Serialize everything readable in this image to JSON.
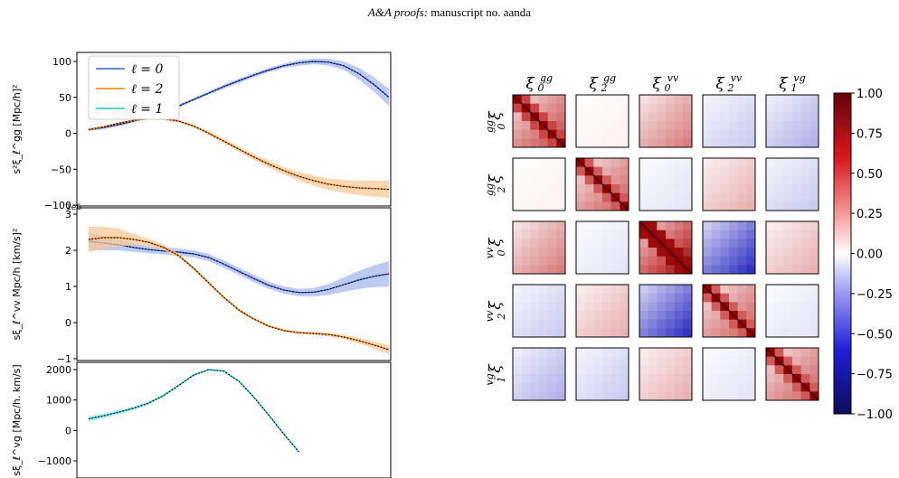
{
  "header": {
    "journal": "A&A proofs:",
    "manuscript": "manuscript no. aanda"
  },
  "colors": {
    "l0": "#3a5fcd",
    "l2": "#f07f0f",
    "l1": "#20c4c8",
    "band_l0": "#a9b8ee",
    "band_l2": "#f7c99a",
    "band_l1": "#9ce6e8",
    "model": "#000000"
  },
  "chart_data": [
    {
      "type": "line",
      "panel": "gg",
      "ylabel": "s²ξ_ℓ^gg  [Mpc/h]²",
      "ylim": [
        -100,
        110
      ],
      "yticks": [
        100,
        50,
        0,
        -50,
        -100
      ],
      "ytick_labels": [
        "100",
        "50",
        "0",
        "−50",
        "−100"
      ],
      "legend": [
        "ℓ = 0",
        "ℓ = 2",
        "ℓ = 1"
      ],
      "legend_position": "top-left",
      "x": [
        0.0,
        0.05,
        0.1,
        0.15,
        0.2,
        0.25,
        0.3,
        0.35,
        0.4,
        0.45,
        0.5,
        0.55,
        0.6,
        0.65,
        0.7,
        0.75,
        0.8,
        0.85,
        0.9,
        0.95,
        1.0
      ],
      "series": [
        {
          "name": "ℓ = 0",
          "color_key": "l0",
          "values": [
            5,
            8,
            12,
            17,
            23,
            30,
            38,
            47,
            56,
            65,
            73,
            81,
            88,
            94,
            98,
            100,
            99,
            94,
            83,
            68,
            50
          ],
          "err": [
            2,
            2,
            2,
            2,
            2,
            2,
            2,
            2,
            2,
            3,
            3,
            3,
            3,
            3,
            4,
            4,
            5,
            6,
            8,
            10,
            12
          ]
        },
        {
          "name": "ℓ = 2",
          "color_key": "l2",
          "values": [
            5,
            9,
            14,
            18,
            20,
            20,
            17,
            10,
            0,
            -11,
            -22,
            -33,
            -43,
            -52,
            -60,
            -66,
            -71,
            -74,
            -76,
            -77,
            -78
          ],
          "err": [
            1,
            1,
            1,
            1,
            1,
            2,
            2,
            2,
            3,
            3,
            4,
            4,
            5,
            5,
            6,
            7,
            8,
            9,
            10,
            11,
            12
          ]
        }
      ]
    },
    {
      "type": "line",
      "panel": "vv",
      "ylabel": "sξ_ℓ^vv  Mpc/h [km/s]²",
      "exponent_label": "1e6",
      "ylim": [
        -1,
        3
      ],
      "yticks": [
        3,
        2,
        1,
        0,
        -1
      ],
      "ytick_labels": [
        "3",
        "2",
        "1",
        "0",
        "−1"
      ],
      "x": [
        0.0,
        0.05,
        0.1,
        0.15,
        0.2,
        0.25,
        0.3,
        0.35,
        0.4,
        0.45,
        0.5,
        0.55,
        0.6,
        0.65,
        0.7,
        0.75,
        0.8,
        0.85,
        0.9,
        0.95,
        1.0
      ],
      "series": [
        {
          "name": "ℓ = 0",
          "color_key": "l0",
          "values": [
            2.25,
            2.2,
            2.15,
            2.08,
            2.02,
            1.98,
            1.95,
            1.9,
            1.8,
            1.62,
            1.42,
            1.22,
            1.03,
            0.9,
            0.83,
            0.84,
            0.92,
            1.05,
            1.18,
            1.28,
            1.35
          ],
          "err": [
            0.25,
            0.2,
            0.15,
            0.12,
            0.1,
            0.1,
            0.1,
            0.1,
            0.1,
            0.1,
            0.1,
            0.1,
            0.1,
            0.1,
            0.1,
            0.12,
            0.15,
            0.2,
            0.25,
            0.3,
            0.35
          ]
        },
        {
          "name": "ℓ = 2",
          "color_key": "l2",
          "values": [
            2.3,
            2.35,
            2.35,
            2.3,
            2.22,
            2.08,
            1.85,
            1.5,
            1.1,
            0.7,
            0.35,
            0.1,
            -0.1,
            -0.22,
            -0.28,
            -0.3,
            -0.33,
            -0.4,
            -0.5,
            -0.62,
            -0.75
          ],
          "err": [
            0.35,
            0.3,
            0.25,
            0.15,
            0.1,
            0.08,
            0.06,
            0.05,
            0.05,
            0.04,
            0.04,
            0.04,
            0.04,
            0.04,
            0.04,
            0.04,
            0.05,
            0.06,
            0.08,
            0.1,
            0.12
          ]
        }
      ]
    },
    {
      "type": "line",
      "panel": "vg",
      "ylabel": "sξ_ℓ^vg  [Mpc/h. km/s]",
      "ylim": [
        -1400,
        2100
      ],
      "yticks": [
        2000,
        1000,
        0,
        -1000
      ],
      "ytick_labels": [
        "2000",
        "1000",
        "0",
        "−1000"
      ],
      "x": [
        0.0,
        0.05,
        0.1,
        0.15,
        0.2,
        0.25,
        0.3,
        0.35,
        0.4,
        0.45,
        0.5,
        0.55,
        0.6,
        0.65,
        0.7
      ],
      "series": [
        {
          "name": "ℓ = 1",
          "color_key": "l1",
          "values": [
            380,
            480,
            600,
            730,
            900,
            1150,
            1480,
            1820,
            2000,
            1950,
            1620,
            1100,
            500,
            -120,
            -700
          ],
          "err": [
            90,
            80,
            70,
            60,
            50,
            40,
            35,
            30,
            30,
            30,
            30,
            30,
            30,
            30,
            30
          ]
        }
      ]
    },
    {
      "type": "heatmap",
      "panel": "correlation-matrix",
      "row_labels": [
        {
          "main": "ξ",
          "sup": "gg",
          "sub": "0"
        },
        {
          "main": "ξ",
          "sup": "gg",
          "sub": "2"
        },
        {
          "main": "ξ",
          "sup": "vv",
          "sub": "0"
        },
        {
          "main": "ξ",
          "sup": "vv",
          "sub": "2"
        },
        {
          "main": "ξ",
          "sup": "vg",
          "sub": "1"
        }
      ],
      "col_labels": [
        {
          "main": "ξ",
          "sup": "gg",
          "sub": "0"
        },
        {
          "main": "ξ",
          "sup": "gg",
          "sub": "2"
        },
        {
          "main": "ξ",
          "sup": "vv",
          "sub": "0"
        },
        {
          "main": "ξ",
          "sup": "vv",
          "sub": "2"
        },
        {
          "main": "ξ",
          "sup": "vg",
          "sub": "1"
        }
      ],
      "block_mean": [
        [
          0.7,
          0.05,
          0.5,
          -0.2,
          -0.3
        ],
        [
          0.05,
          0.6,
          -0.1,
          0.3,
          -0.2
        ],
        [
          0.5,
          -0.1,
          0.95,
          -0.8,
          0.3
        ],
        [
          -0.2,
          0.3,
          -0.8,
          0.6,
          -0.1
        ],
        [
          -0.3,
          -0.2,
          0.3,
          -0.1,
          0.6
        ]
      ],
      "colorbar": {
        "vmin": -1.0,
        "vmax": 1.0,
        "ticks": [
          1.0,
          0.75,
          0.5,
          0.25,
          0.0,
          -0.25,
          -0.5,
          -0.75,
          -1.0
        ],
        "tick_labels": [
          "1.00",
          "0.75",
          "0.50",
          "0.25",
          "0.00",
          "−0.25",
          "−0.50",
          "−0.75",
          "−1.00"
        ]
      }
    }
  ]
}
